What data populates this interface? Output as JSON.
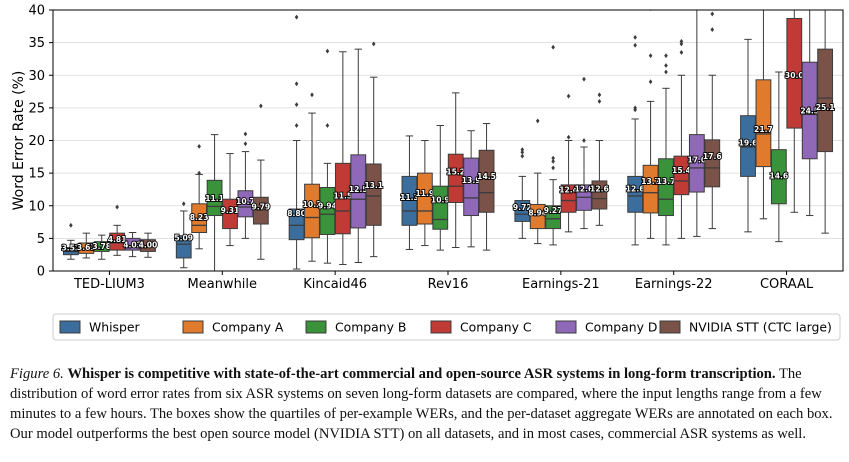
{
  "chart_data": {
    "type": "box",
    "ylabel": "Word Error Rate (%)",
    "xlabel": "",
    "ylim": [
      0,
      40
    ],
    "yticks": [
      0,
      5,
      10,
      15,
      20,
      25,
      30,
      35,
      40
    ],
    "grid": true,
    "legend_position": "bottom",
    "categories": [
      "TED-LIUM3",
      "Meanwhile",
      "Kincaid46",
      "Rev16",
      "Earnings-21",
      "Earnings-22",
      "CORAAL"
    ],
    "series": [
      {
        "name": "Whisper",
        "color": "#3b6e9c",
        "labels": [
          "3.52",
          "5.09",
          "8.80",
          "11.3",
          "9.72",
          "12.6",
          "19.6"
        ],
        "boxes": [
          {
            "whislo": 1.8,
            "q1": 2.5,
            "med": 3.0,
            "q3": 3.6,
            "whishi": 4.7,
            "fliers": [
              7.0
            ]
          },
          {
            "whislo": 0.5,
            "q1": 2.0,
            "med": 4.1,
            "q3": 5.4,
            "whishi": 9.2,
            "fliers": [
              10.3
            ]
          },
          {
            "whislo": 0.3,
            "q1": 4.8,
            "med": 7.0,
            "q3": 9.5,
            "whishi": 20.0,
            "fliers": [
              22.3,
              25.5,
              28.7,
              38.9
            ]
          },
          {
            "whislo": 3.3,
            "q1": 7.0,
            "med": 9.2,
            "q3": 14.5,
            "whishi": 20.7,
            "fliers": []
          },
          {
            "whislo": 5.0,
            "q1": 7.6,
            "med": 8.7,
            "q3": 10.8,
            "whishi": 14.5,
            "fliers": [
              17.6,
              18.2,
              18.6
            ]
          },
          {
            "whislo": 4.0,
            "q1": 9.0,
            "med": 11.5,
            "q3": 14.5,
            "whishi": 23.3,
            "fliers": [
              24.7,
              25.0,
              34.6,
              35.8
            ]
          },
          {
            "whislo": 6.0,
            "q1": 14.5,
            "med": 19.0,
            "q3": 23.8,
            "whishi": 35.5,
            "fliers": []
          }
        ]
      },
      {
        "name": "Company A",
        "color": "#e07b2e",
        "labels": [
          "3.61",
          "8.23",
          "10.2",
          "11.9",
          "8.94",
          "13.7",
          "21.7"
        ],
        "boxes": [
          {
            "whislo": 2.0,
            "q1": 2.7,
            "med": 3.4,
            "q3": 4.3,
            "whishi": 5.8,
            "fliers": []
          },
          {
            "whislo": 3.4,
            "q1": 5.9,
            "med": 7.0,
            "q3": 10.3,
            "whishi": 14.8,
            "fliers": [
              15.0,
              19.1
            ]
          },
          {
            "whislo": 1.5,
            "q1": 5.1,
            "med": 8.2,
            "q3": 13.3,
            "whishi": 24.2,
            "fliers": [
              27.0
            ]
          },
          {
            "whislo": 3.9,
            "q1": 7.2,
            "med": 9.2,
            "q3": 15.0,
            "whishi": 20.0,
            "fliers": []
          },
          {
            "whislo": 4.2,
            "q1": 6.5,
            "med": 8.7,
            "q3": 10.2,
            "whishi": 15.0,
            "fliers": [
              23.0
            ]
          },
          {
            "whislo": 5.0,
            "q1": 8.9,
            "med": 12.0,
            "q3": 16.2,
            "whishi": 26.0,
            "fliers": [
              29.0,
              33.0,
              40.2
            ]
          },
          {
            "whislo": 8.0,
            "q1": 16.0,
            "med": 21.0,
            "q3": 29.3,
            "whishi": 40.0,
            "fliers": []
          }
        ]
      },
      {
        "name": "Company B",
        "color": "#3a923a",
        "labels": [
          "3.78",
          "11.1",
          "9.94",
          "10.9",
          "9.27",
          "13.7",
          "14.6"
        ],
        "boxes": [
          {
            "whislo": 1.8,
            "q1": 3.0,
            "med": 3.6,
            "q3": 4.5,
            "whishi": 5.5,
            "fliers": []
          },
          {
            "whislo": 0.0,
            "q1": 8.5,
            "med": 9.9,
            "q3": 13.9,
            "whishi": 20.9,
            "fliers": []
          },
          {
            "whislo": 1.2,
            "q1": 5.6,
            "med": 8.7,
            "q3": 12.8,
            "whishi": 16.5,
            "fliers": [
              22.3,
              33.7
            ]
          },
          {
            "whislo": 3.2,
            "q1": 6.4,
            "med": 7.9,
            "q3": 13.0,
            "whishi": 22.3,
            "fliers": []
          },
          {
            "whislo": 4.0,
            "q1": 6.5,
            "med": 8.0,
            "q3": 10.0,
            "whishi": 14.0,
            "fliers": [
              15.8,
              16.8,
              17.3,
              34.3
            ]
          },
          {
            "whislo": 4.0,
            "q1": 8.5,
            "med": 11.0,
            "q3": 17.2,
            "whishi": 28.0,
            "fliers": [
              30.5,
              31.5,
              33.0
            ]
          },
          {
            "whislo": 4.5,
            "q1": 10.3,
            "med": 14.6,
            "q3": 18.6,
            "whishi": 30.5,
            "fliers": []
          }
        ]
      },
      {
        "name": "Company C",
        "color": "#c03a36",
        "labels": [
          "4.81",
          "9.31",
          "11.5",
          "15.2",
          "12.4",
          "15.4",
          "30.0"
        ],
        "boxes": [
          {
            "whislo": 2.4,
            "q1": 3.2,
            "med": 4.3,
            "q3": 5.8,
            "whishi": 7.0,
            "fliers": [
              9.8
            ]
          },
          {
            "whislo": 3.9,
            "q1": 6.5,
            "med": 9.0,
            "q3": 11.0,
            "whishi": 18.0,
            "fliers": []
          },
          {
            "whislo": 1.0,
            "q1": 5.7,
            "med": 9.2,
            "q3": 16.5,
            "whishi": 33.6,
            "fliers": []
          },
          {
            "whislo": 3.6,
            "q1": 10.5,
            "med": 13.0,
            "q3": 17.9,
            "whishi": 27.3,
            "fliers": []
          },
          {
            "whislo": 6.0,
            "q1": 9.0,
            "med": 10.8,
            "q3": 13.2,
            "whishi": 20.0,
            "fliers": [
              20.5,
              26.8
            ]
          },
          {
            "whislo": 5.0,
            "q1": 11.7,
            "med": 13.8,
            "q3": 17.6,
            "whishi": 30.0,
            "fliers": [
              33.5,
              34.8,
              35.2
            ]
          },
          {
            "whislo": 9.0,
            "q1": 21.9,
            "med": 30.0,
            "q3": 38.7,
            "whishi": 40.0,
            "fliers": []
          }
        ]
      },
      {
        "name": "Company D",
        "color": "#9068b8",
        "labels": [
          "4.02",
          "10.7",
          "12.5",
          "13.9",
          "12.6",
          "17.0",
          "24.5"
        ],
        "boxes": [
          {
            "whislo": 2.2,
            "q1": 3.2,
            "med": 3.9,
            "q3": 5.0,
            "whishi": 5.9,
            "fliers": []
          },
          {
            "whislo": 5.0,
            "q1": 8.3,
            "med": 9.8,
            "q3": 12.3,
            "whishi": 18.3,
            "fliers": [
              19.5,
              21.0
            ]
          },
          {
            "whislo": 1.3,
            "q1": 6.6,
            "med": 11.0,
            "q3": 17.8,
            "whishi": 34.0,
            "fliers": []
          },
          {
            "whislo": 3.7,
            "q1": 8.5,
            "med": 11.2,
            "q3": 17.3,
            "whishi": 21.5,
            "fliers": []
          },
          {
            "whislo": 6.5,
            "q1": 9.3,
            "med": 11.3,
            "q3": 13.2,
            "whishi": 19.0,
            "fliers": [
              20.0,
              29.4
            ]
          },
          {
            "whislo": 5.3,
            "q1": 12.1,
            "med": 15.8,
            "q3": 20.9,
            "whishi": 40.0,
            "fliers": []
          },
          {
            "whislo": 8.5,
            "q1": 17.2,
            "med": 24.0,
            "q3": 32.0,
            "whishi": 40.0,
            "fliers": []
          }
        ]
      },
      {
        "name": "NVIDIA STT (CTC large)",
        "color": "#7a5248",
        "labels": [
          "4.00",
          "9.79",
          "13.1",
          "14.5",
          "12.6",
          "17.6",
          "25.1"
        ],
        "boxes": [
          {
            "whislo": 2.1,
            "q1": 3.0,
            "med": 3.8,
            "q3": 4.8,
            "whishi": 5.8,
            "fliers": []
          },
          {
            "whislo": 1.8,
            "q1": 7.2,
            "med": 9.4,
            "q3": 11.3,
            "whishi": 17.0,
            "fliers": [
              25.3
            ]
          },
          {
            "whislo": 2.2,
            "q1": 7.0,
            "med": 11.5,
            "q3": 16.4,
            "whishi": 29.7,
            "fliers": [
              34.8
            ]
          },
          {
            "whislo": 3.2,
            "q1": 9.0,
            "med": 12.0,
            "q3": 18.5,
            "whishi": 22.6,
            "fliers": []
          },
          {
            "whislo": 7.0,
            "q1": 9.5,
            "med": 11.1,
            "q3": 13.8,
            "whishi": 20.0,
            "fliers": [
              26.0,
              27.0
            ]
          },
          {
            "whislo": 6.5,
            "q1": 12.9,
            "med": 15.8,
            "q3": 20.1,
            "whishi": 30.0,
            "fliers": [
              37.0,
              39.4
            ]
          },
          {
            "whislo": 5.8,
            "q1": 18.3,
            "med": 26.5,
            "q3": 34.0,
            "whishi": 40.0,
            "fliers": []
          }
        ]
      }
    ]
  },
  "caption": {
    "figure_label": "Figure 6.",
    "bold_text": "Whisper is competitive with state-of-the-art commercial and open-source ASR systems in long-form transcription.",
    "body_text": "The distribution of word error rates from six ASR systems on seven long-form datasets are compared, where the input lengths range from a few minutes to a few hours. The boxes show the quartiles of per-example WERs, and the per-dataset aggregate WERs are annotated on each box. Our model outperforms the best open source model (NVIDIA STT) on all datasets, and in most cases, commercial ASR systems as well."
  }
}
